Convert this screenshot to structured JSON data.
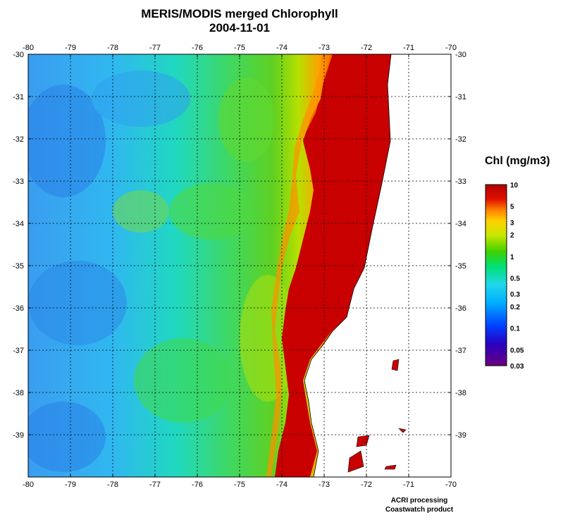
{
  "title": "MERIS/MODIS merged Chlorophyll",
  "date": "2004-11-01",
  "credits": {
    "line1": "ACRI processing",
    "line2": "Coastwatch product"
  },
  "colorbar": {
    "title": "Chl (mg/m3)",
    "ticks": [
      {
        "label": "10",
        "value": 10
      },
      {
        "label": "5",
        "value": 5
      },
      {
        "label": "3",
        "value": 3
      },
      {
        "label": "2",
        "value": 2
      },
      {
        "label": "1",
        "value": 1
      },
      {
        "label": "0.5",
        "value": 0.5
      },
      {
        "label": "0.3",
        "value": 0.3
      },
      {
        "label": "0.2",
        "value": 0.2
      },
      {
        "label": "0.1",
        "value": 0.1
      },
      {
        "label": "0.05",
        "value": 0.05
      },
      {
        "label": "0.03",
        "value": 0.03
      }
    ],
    "colors": [
      "#6a0080",
      "#2a00c0",
      "#0040ff",
      "#00b0ff",
      "#20d8e8",
      "#00e070",
      "#40d000",
      "#c8e800",
      "#ffd000",
      "#ff8000",
      "#e01000",
      "#b00000"
    ]
  },
  "map": {
    "lon_min": -80,
    "lon_max": -70,
    "lat_min": -40,
    "lat_max": -30,
    "lon_ticks": [
      "-80",
      "-79",
      "-78",
      "-77",
      "-76",
      "-75",
      "-74",
      "-73",
      "-72",
      "-71",
      "-70"
    ],
    "lat_ticks": [
      "-30",
      "-31",
      "-32",
      "-33",
      "-34",
      "-35",
      "-36",
      "-37",
      "-38",
      "-39"
    ],
    "colors": {
      "ocean_low": "#3aa8f0",
      "ocean_mid": "#20d8a0",
      "coastal": "#40d020",
      "high": "#c80000",
      "land": "#ffffff",
      "grid": "#000000"
    }
  }
}
